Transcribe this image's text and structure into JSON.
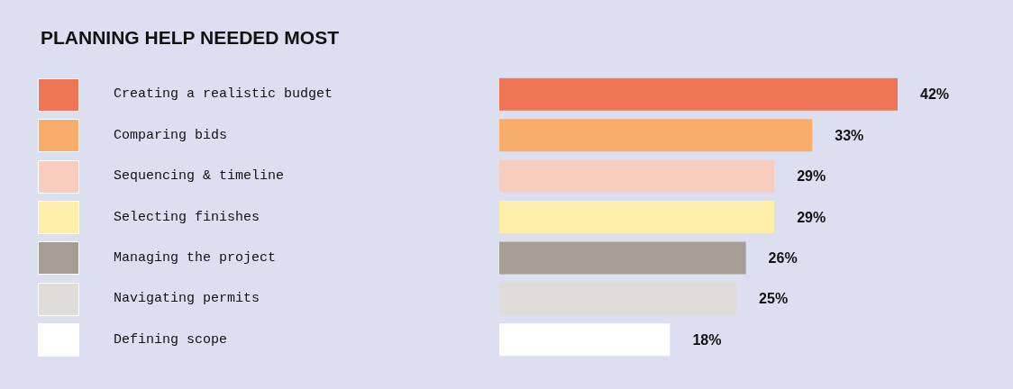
{
  "chart_data": {
    "type": "bar",
    "orientation": "horizontal",
    "title": "PLANNING HELP NEEDED MOST",
    "categories": [
      "Creating a realistic budget",
      "Comparing bids",
      "Sequencing & timeline",
      "Selecting finishes",
      "Managing the project",
      "Navigating permits",
      "Defining scope"
    ],
    "values": [
      42,
      33,
      29,
      29,
      26,
      25,
      18
    ],
    "colors": [
      "#f07555",
      "#f8ae6a",
      "#f8cdbf",
      "#feeea8",
      "#a69d94",
      "#e0dcda",
      "#ffffff"
    ],
    "value_labels": [
      "42%",
      "33%",
      "29%",
      "29%",
      "26%",
      "25%",
      "18%"
    ]
  }
}
